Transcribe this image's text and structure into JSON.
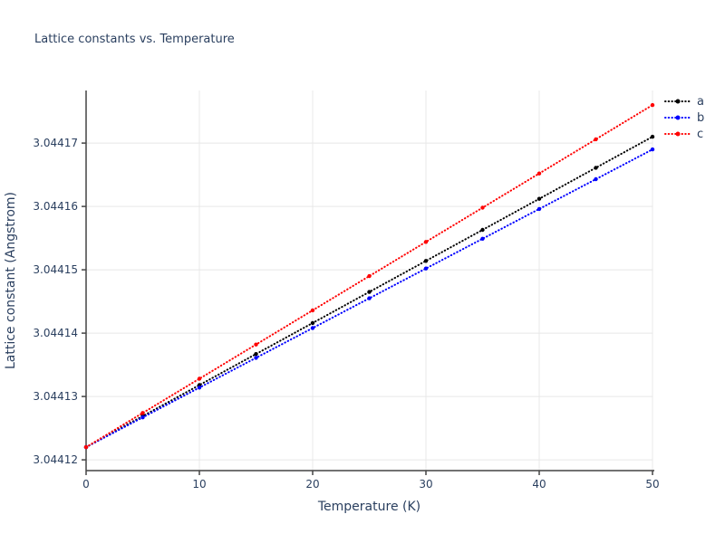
{
  "chart_data": {
    "type": "line",
    "title": "Lattice constants vs. Temperature",
    "xlabel": "Temperature (K)",
    "ylabel": "Lattice constant (Angstrom)",
    "xlim": [
      0,
      50
    ],
    "ylim": [
      3.0441183,
      3.0441783
    ],
    "grid": true,
    "legend_position": "top-right-outside",
    "x_ticks": [
      0,
      10,
      20,
      30,
      40,
      50
    ],
    "x_tick_labels": [
      "0",
      "10",
      "20",
      "30",
      "40",
      "50"
    ],
    "y_ticks": [
      3.04412,
      3.04413,
      3.04414,
      3.04415,
      3.04416,
      3.04417
    ],
    "y_tick_labels": [
      "3.04412",
      "3.04413",
      "3.04414",
      "3.04415",
      "3.04416",
      "3.04417"
    ],
    "x": [
      0,
      5,
      10,
      15,
      20,
      25,
      30,
      35,
      40,
      45,
      50
    ],
    "series": [
      {
        "name": "a",
        "color": "#000000",
        "line_style": "dotted",
        "values": [
          3.044122,
          3.0441269,
          3.0441318,
          3.0441367,
          3.0441416,
          3.0441465,
          3.0441514,
          3.0441563,
          3.0441612,
          3.0441661,
          3.044171
        ]
      },
      {
        "name": "b",
        "color": "#0000ff",
        "line_style": "dotted",
        "values": [
          3.044122,
          3.0441267,
          3.0441314,
          3.0441361,
          3.0441408,
          3.0441455,
          3.0441502,
          3.0441549,
          3.0441596,
          3.0441643,
          3.044169
        ]
      },
      {
        "name": "c",
        "color": "#ff0000",
        "line_style": "dotted",
        "values": [
          3.044122,
          3.0441274,
          3.0441328,
          3.0441382,
          3.0441436,
          3.044149,
          3.0441544,
          3.0441598,
          3.0441652,
          3.0441706,
          3.044176
        ]
      }
    ],
    "colors": {
      "title_text": "#2a3f5f",
      "tick_text": "#2a3f5f",
      "axis_line": "#444444",
      "gridline": "#e8e8e8",
      "background": "#ffffff"
    }
  }
}
